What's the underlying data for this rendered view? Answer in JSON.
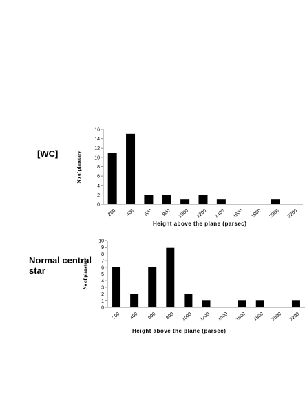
{
  "chart_data": [
    {
      "type": "bar",
      "panel_label": "[WC]",
      "categories": [
        "200",
        "400",
        "600",
        "800",
        "1000",
        "1200",
        "1400",
        "1600",
        "1800",
        "2000",
        "2200"
      ],
      "values": [
        11,
        15,
        2,
        2,
        1,
        2,
        1,
        0,
        0,
        1,
        0
      ],
      "yticks": [
        "0",
        "2",
        "4",
        "6",
        "8",
        "10",
        "12",
        "14",
        "16"
      ],
      "ylim": [
        0,
        16
      ],
      "xlabel": "Height above the plane (parsec)",
      "ylabel": "No of planetary",
      "grid": false,
      "bar_color": "#000000"
    },
    {
      "type": "bar",
      "panel_label": "Normal central star",
      "categories": [
        "200",
        "400",
        "600",
        "800",
        "1000",
        "1200",
        "1400",
        "1600",
        "1800",
        "2000",
        "2200"
      ],
      "values": [
        6,
        2,
        6,
        9,
        2,
        1,
        0,
        1,
        1,
        0,
        1
      ],
      "yticks": [
        "0",
        "1",
        "2",
        "3",
        "4",
        "5",
        "6",
        "7",
        "8",
        "9",
        "10"
      ],
      "ylim": [
        0,
        10
      ],
      "xlabel": "Height above the plane (parsec)",
      "ylabel": "No of planetary",
      "grid": false,
      "bar_color": "#000000"
    }
  ]
}
